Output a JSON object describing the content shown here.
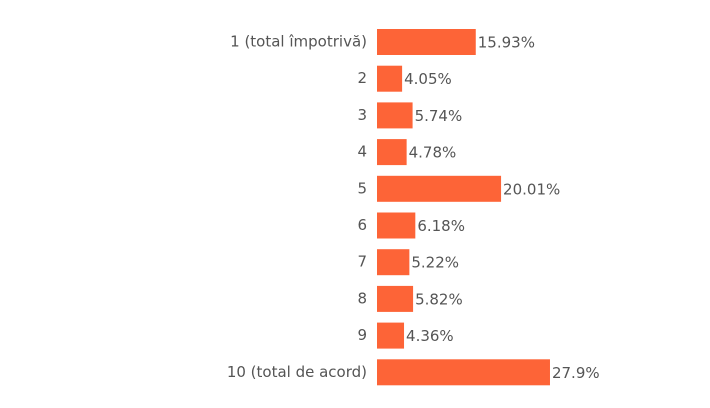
{
  "chart_data": {
    "type": "bar",
    "orientation": "horizontal",
    "categories": [
      "1 (total împotrivă)",
      "2",
      "3",
      "4",
      "5",
      "6",
      "7",
      "8",
      "9",
      "10 (total de acord)"
    ],
    "values": [
      15.93,
      4.05,
      5.74,
      4.78,
      20.01,
      6.18,
      5.22,
      5.82,
      4.36,
      27.9
    ],
    "value_labels": [
      "15.93%",
      "4.05%",
      "5.74%",
      "4.78%",
      "20.01%",
      "6.18%",
      "5.22%",
      "5.82%",
      "4.36%",
      "27.9%"
    ],
    "color": "#fd6437"
  }
}
